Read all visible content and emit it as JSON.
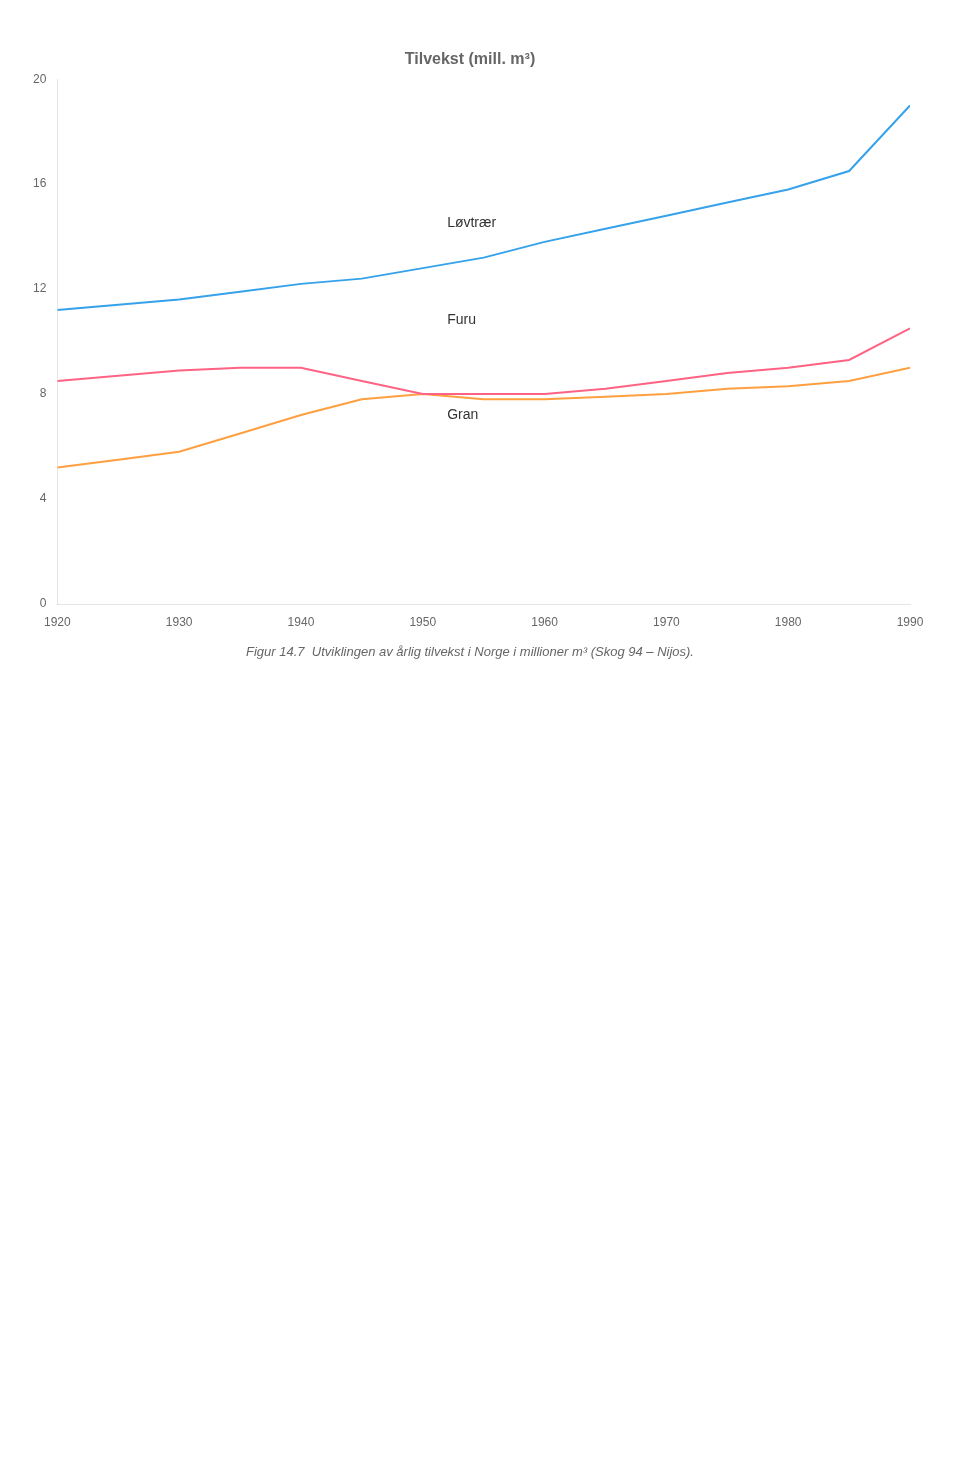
{
  "chart_data": {
    "type": "line",
    "title": "Tilvekst (mill. m³)",
    "subtitle": "Figur 14.7  Utviklingen av årlig tilvekst i Norge i millioner m³ (Skog 94 – Nijos).",
    "x": [
      1920,
      1925,
      1930,
      1935,
      1940,
      1945,
      1950,
      1955,
      1960,
      1965,
      1970,
      1975,
      1980,
      1985,
      1990
    ],
    "series": [
      {
        "name": "Løvtrær",
        "values": [
          11.2,
          11.4,
          11.6,
          11.9,
          12.2,
          12.4,
          12.8,
          13.2,
          13.8,
          14.3,
          14.8,
          15.3,
          15.8,
          16.5,
          19.0
        ]
      },
      {
        "name": "Furu",
        "values": [
          8.5,
          8.7,
          8.9,
          9.0,
          9.0,
          8.5,
          8.0,
          8.0,
          8.0,
          8.2,
          8.5,
          8.8,
          9.0,
          9.3,
          10.5
        ]
      },
      {
        "name": "Gran",
        "values": [
          5.2,
          5.5,
          5.8,
          6.5,
          7.2,
          7.8,
          8.0,
          7.8,
          7.8,
          7.9,
          8.0,
          8.2,
          8.3,
          8.5,
          9.0
        ]
      }
    ],
    "annotations": [
      {
        "text": "Løvtrær",
        "x": 1952,
        "y": 14.5
      },
      {
        "text": "Furu",
        "x": 1952,
        "y": 10.8
      },
      {
        "text": "Gran",
        "x": 1952,
        "y": 7.2
      }
    ],
    "xlim": [
      1920,
      1990
    ],
    "xticks": [
      1920,
      1930,
      1940,
      1950,
      1960,
      1970,
      1980,
      1990
    ],
    "ylim": [
      0,
      20
    ],
    "yticks": [
      0,
      4,
      8,
      12,
      16,
      20
    ],
    "grid": false
  }
}
